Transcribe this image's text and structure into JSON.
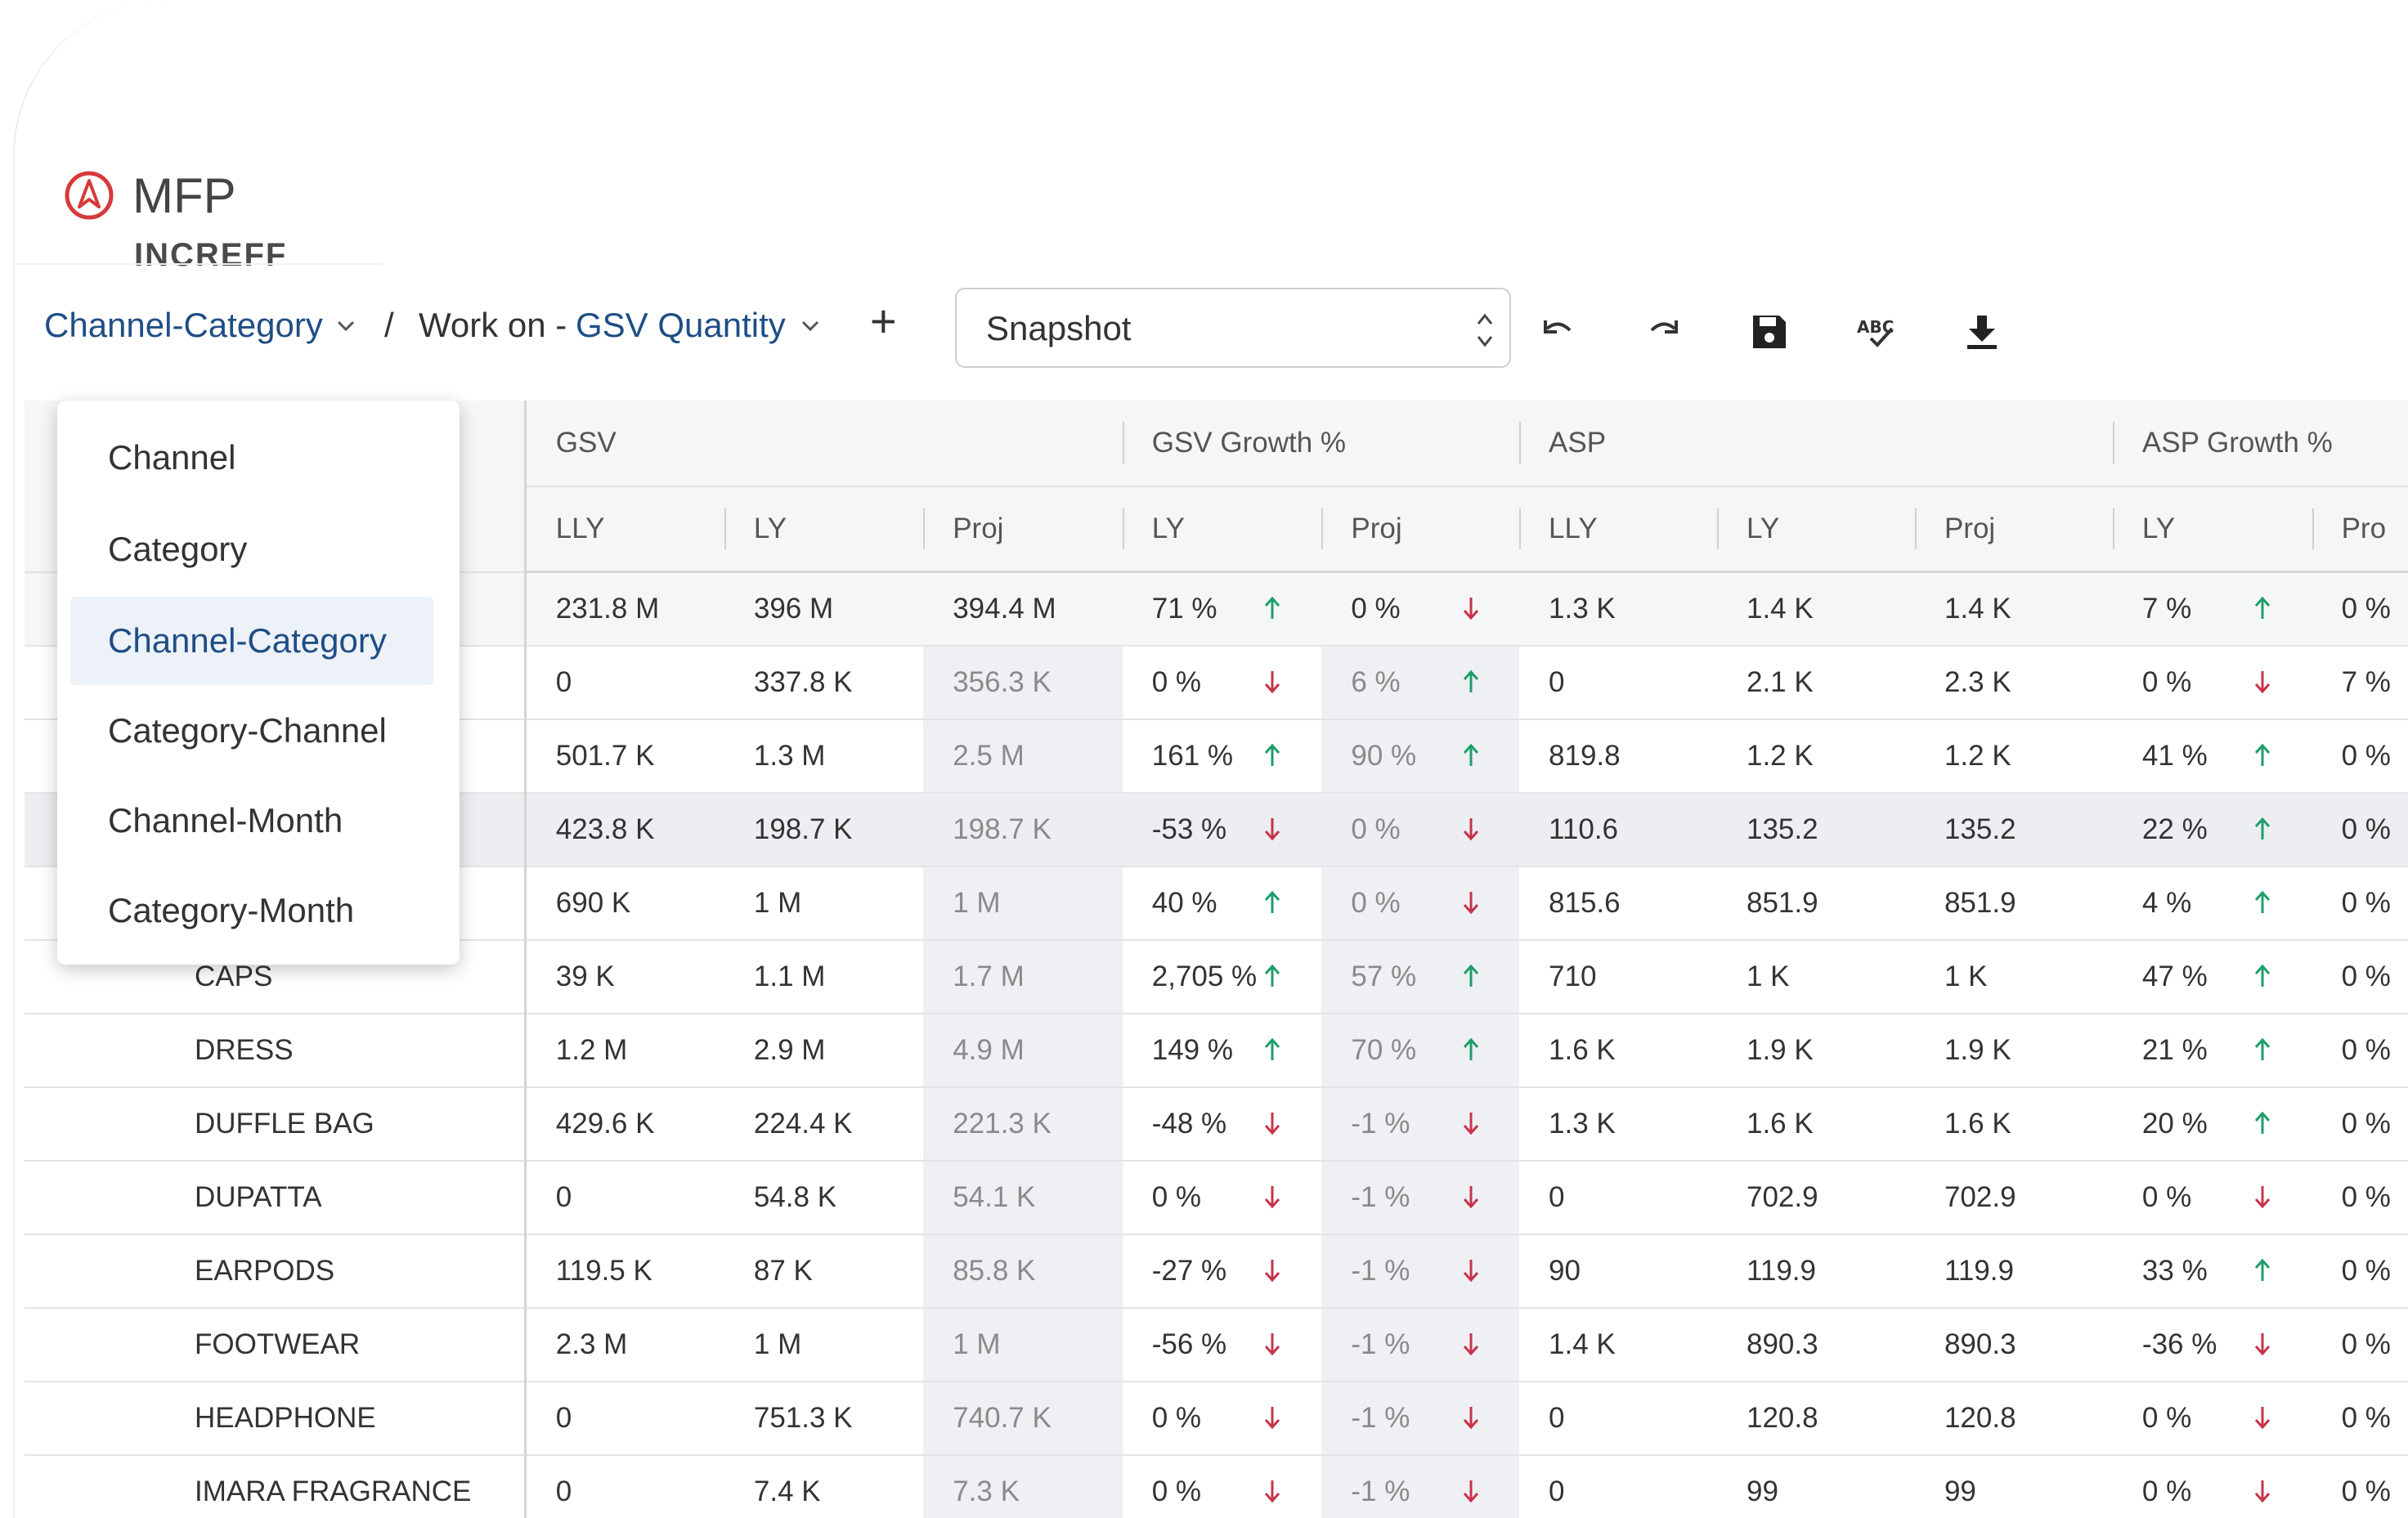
{
  "app": {
    "name": "MFP",
    "company": "INCREFF"
  },
  "breadcrumb": {
    "view": "Channel-Category",
    "separator": "/",
    "work_on_label": "Work on -",
    "work_on_value": "GSV Quantity"
  },
  "toolbar": {
    "add": "+",
    "snapshot_value": "Snapshot",
    "icons": [
      "undo-icon",
      "redo-icon",
      "save-icon",
      "spellcheck-icon",
      "download-icon"
    ]
  },
  "view_menu": {
    "items": [
      "Channel",
      "Category",
      "Channel-Category",
      "Category-Channel",
      "Channel-Month",
      "Category-Month"
    ],
    "selected": "Channel-Category"
  },
  "table": {
    "groups": [
      "GSV",
      "GSV Growth %",
      "ASP",
      "ASP Growth %"
    ],
    "sub_headers": [
      "LLY",
      "LY",
      "Proj",
      "LY",
      "Proj",
      "LLY",
      "LY",
      "Proj",
      "LY",
      "Pro"
    ],
    "rows": [
      {
        "name": "",
        "gsv": [
          "231.8 M",
          "396 M",
          "394.4 M"
        ],
        "gsv_growth": [
          {
            "v": "71 %",
            "dir": "up"
          },
          {
            "v": "0 %",
            "dir": "down"
          }
        ],
        "asp": [
          "1.3 K",
          "1.4 K",
          "1.4 K"
        ],
        "asp_growth": [
          {
            "v": "7 %",
            "dir": "up"
          }
        ],
        "last": "0 %"
      },
      {
        "name": "",
        "gsv": [
          "0",
          "337.8 K",
          "356.3 K"
        ],
        "gsv_growth": [
          {
            "v": "0 %",
            "dir": "down"
          },
          {
            "v": "6 %",
            "dir": "up"
          }
        ],
        "asp": [
          "0",
          "2.1 K",
          "2.3 K"
        ],
        "asp_growth": [
          {
            "v": "0 %",
            "dir": "down"
          }
        ],
        "last": "7 %"
      },
      {
        "name": "",
        "gsv": [
          "501.7 K",
          "1.3 M",
          "2.5 M"
        ],
        "gsv_growth": [
          {
            "v": "161 %",
            "dir": "up"
          },
          {
            "v": "90 %",
            "dir": "up"
          }
        ],
        "asp": [
          "819.8",
          "1.2 K",
          "1.2 K"
        ],
        "asp_growth": [
          {
            "v": "41 %",
            "dir": "up"
          }
        ],
        "last": "0 %"
      },
      {
        "name": "",
        "gsv": [
          "423.8 K",
          "198.7 K",
          "198.7 K"
        ],
        "gsv_growth": [
          {
            "v": "-53 %",
            "dir": "down"
          },
          {
            "v": "0 %",
            "dir": "down"
          }
        ],
        "asp": [
          "110.6",
          "135.2",
          "135.2"
        ],
        "asp_growth": [
          {
            "v": "22 %",
            "dir": "up"
          }
        ],
        "last": "0 %"
      },
      {
        "name": "",
        "gsv": [
          "690 K",
          "1 M",
          "1 M"
        ],
        "gsv_growth": [
          {
            "v": "40 %",
            "dir": "up"
          },
          {
            "v": "0 %",
            "dir": "down"
          }
        ],
        "asp": [
          "815.6",
          "851.9",
          "851.9"
        ],
        "asp_growth": [
          {
            "v": "4 %",
            "dir": "up"
          }
        ],
        "last": "0 %"
      },
      {
        "name": "CAPS",
        "gsv": [
          "39 K",
          "1.1 M",
          "1.7 M"
        ],
        "gsv_growth": [
          {
            "v": "2,705 %",
            "dir": "up"
          },
          {
            "v": "57 %",
            "dir": "up"
          }
        ],
        "asp": [
          "710",
          "1 K",
          "1 K"
        ],
        "asp_growth": [
          {
            "v": "47 %",
            "dir": "up"
          }
        ],
        "last": "0 %"
      },
      {
        "name": "DRESS",
        "gsv": [
          "1.2 M",
          "2.9 M",
          "4.9 M"
        ],
        "gsv_growth": [
          {
            "v": "149 %",
            "dir": "up"
          },
          {
            "v": "70 %",
            "dir": "up"
          }
        ],
        "asp": [
          "1.6 K",
          "1.9 K",
          "1.9 K"
        ],
        "asp_growth": [
          {
            "v": "21 %",
            "dir": "up"
          }
        ],
        "last": "0 %"
      },
      {
        "name": "DUFFLE BAG",
        "gsv": [
          "429.6 K",
          "224.4 K",
          "221.3 K"
        ],
        "gsv_growth": [
          {
            "v": "-48 %",
            "dir": "down"
          },
          {
            "v": "-1 %",
            "dir": "down"
          }
        ],
        "asp": [
          "1.3 K",
          "1.6 K",
          "1.6 K"
        ],
        "asp_growth": [
          {
            "v": "20 %",
            "dir": "up"
          }
        ],
        "last": "0 %"
      },
      {
        "name": "DUPATTA",
        "gsv": [
          "0",
          "54.8 K",
          "54.1 K"
        ],
        "gsv_growth": [
          {
            "v": "0 %",
            "dir": "down"
          },
          {
            "v": "-1 %",
            "dir": "down"
          }
        ],
        "asp": [
          "0",
          "702.9",
          "702.9"
        ],
        "asp_growth": [
          {
            "v": "0 %",
            "dir": "down"
          }
        ],
        "last": "0 %"
      },
      {
        "name": "EARPODS",
        "gsv": [
          "119.5 K",
          "87 K",
          "85.8 K"
        ],
        "gsv_growth": [
          {
            "v": "-27 %",
            "dir": "down"
          },
          {
            "v": "-1 %",
            "dir": "down"
          }
        ],
        "asp": [
          "90",
          "119.9",
          "119.9"
        ],
        "asp_growth": [
          {
            "v": "33 %",
            "dir": "up"
          }
        ],
        "last": "0 %"
      },
      {
        "name": "FOOTWEAR",
        "gsv": [
          "2.3 M",
          "1 M",
          "1 M"
        ],
        "gsv_growth": [
          {
            "v": "-56 %",
            "dir": "down"
          },
          {
            "v": "-1 %",
            "dir": "down"
          }
        ],
        "asp": [
          "1.4 K",
          "890.3",
          "890.3"
        ],
        "asp_growth": [
          {
            "v": "-36 %",
            "dir": "down"
          }
        ],
        "last": "0 %"
      },
      {
        "name": "HEADPHONE",
        "gsv": [
          "0",
          "751.3 K",
          "740.7 K"
        ],
        "gsv_growth": [
          {
            "v": "0 %",
            "dir": "down"
          },
          {
            "v": "-1 %",
            "dir": "down"
          }
        ],
        "asp": [
          "0",
          "120.8",
          "120.8"
        ],
        "asp_growth": [
          {
            "v": "0 %",
            "dir": "down"
          }
        ],
        "last": "0 %"
      },
      {
        "name": "IMARA FRAGRANCE",
        "gsv": [
          "0",
          "7.4 K",
          "7.3 K"
        ],
        "gsv_growth": [
          {
            "v": "0 %",
            "dir": "down"
          },
          {
            "v": "-1 %",
            "dir": "down"
          }
        ],
        "asp": [
          "0",
          "99",
          "99"
        ],
        "asp_growth": [
          {
            "v": "0 %",
            "dir": "down"
          }
        ],
        "last": "0 %"
      }
    ]
  },
  "colors": {
    "accent": "#1f4e85",
    "up": "#1e9e6a",
    "down": "#c8334b",
    "logo": "#d63a3a"
  }
}
